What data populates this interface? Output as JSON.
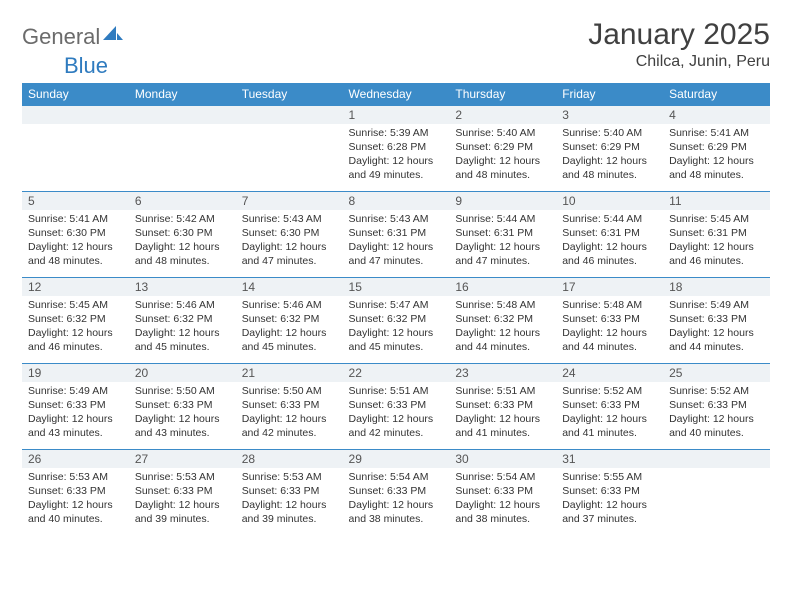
{
  "logo": {
    "text_general": "General",
    "text_blue": "Blue",
    "accent_color": "#2f7bbf",
    "gray_color": "#6b6b6b"
  },
  "title": "January 2025",
  "location": "Chilca, Junin, Peru",
  "header_bg": "#3b8bc8",
  "header_text_color": "#ffffff",
  "daynum_bg": "#eef2f5",
  "border_color": "#3b8bc8",
  "weekdays": [
    "Sunday",
    "Monday",
    "Tuesday",
    "Wednesday",
    "Thursday",
    "Friday",
    "Saturday"
  ],
  "weeks": [
    {
      "nums": [
        "",
        "",
        "",
        "1",
        "2",
        "3",
        "4"
      ],
      "cells": [
        null,
        null,
        null,
        {
          "sunrise": "Sunrise: 5:39 AM",
          "sunset": "Sunset: 6:28 PM",
          "day1": "Daylight: 12 hours",
          "day2": "and 49 minutes."
        },
        {
          "sunrise": "Sunrise: 5:40 AM",
          "sunset": "Sunset: 6:29 PM",
          "day1": "Daylight: 12 hours",
          "day2": "and 48 minutes."
        },
        {
          "sunrise": "Sunrise: 5:40 AM",
          "sunset": "Sunset: 6:29 PM",
          "day1": "Daylight: 12 hours",
          "day2": "and 48 minutes."
        },
        {
          "sunrise": "Sunrise: 5:41 AM",
          "sunset": "Sunset: 6:29 PM",
          "day1": "Daylight: 12 hours",
          "day2": "and 48 minutes."
        }
      ]
    },
    {
      "nums": [
        "5",
        "6",
        "7",
        "8",
        "9",
        "10",
        "11"
      ],
      "cells": [
        {
          "sunrise": "Sunrise: 5:41 AM",
          "sunset": "Sunset: 6:30 PM",
          "day1": "Daylight: 12 hours",
          "day2": "and 48 minutes."
        },
        {
          "sunrise": "Sunrise: 5:42 AM",
          "sunset": "Sunset: 6:30 PM",
          "day1": "Daylight: 12 hours",
          "day2": "and 48 minutes."
        },
        {
          "sunrise": "Sunrise: 5:43 AM",
          "sunset": "Sunset: 6:30 PM",
          "day1": "Daylight: 12 hours",
          "day2": "and 47 minutes."
        },
        {
          "sunrise": "Sunrise: 5:43 AM",
          "sunset": "Sunset: 6:31 PM",
          "day1": "Daylight: 12 hours",
          "day2": "and 47 minutes."
        },
        {
          "sunrise": "Sunrise: 5:44 AM",
          "sunset": "Sunset: 6:31 PM",
          "day1": "Daylight: 12 hours",
          "day2": "and 47 minutes."
        },
        {
          "sunrise": "Sunrise: 5:44 AM",
          "sunset": "Sunset: 6:31 PM",
          "day1": "Daylight: 12 hours",
          "day2": "and 46 minutes."
        },
        {
          "sunrise": "Sunrise: 5:45 AM",
          "sunset": "Sunset: 6:31 PM",
          "day1": "Daylight: 12 hours",
          "day2": "and 46 minutes."
        }
      ]
    },
    {
      "nums": [
        "12",
        "13",
        "14",
        "15",
        "16",
        "17",
        "18"
      ],
      "cells": [
        {
          "sunrise": "Sunrise: 5:45 AM",
          "sunset": "Sunset: 6:32 PM",
          "day1": "Daylight: 12 hours",
          "day2": "and 46 minutes."
        },
        {
          "sunrise": "Sunrise: 5:46 AM",
          "sunset": "Sunset: 6:32 PM",
          "day1": "Daylight: 12 hours",
          "day2": "and 45 minutes."
        },
        {
          "sunrise": "Sunrise: 5:46 AM",
          "sunset": "Sunset: 6:32 PM",
          "day1": "Daylight: 12 hours",
          "day2": "and 45 minutes."
        },
        {
          "sunrise": "Sunrise: 5:47 AM",
          "sunset": "Sunset: 6:32 PM",
          "day1": "Daylight: 12 hours",
          "day2": "and 45 minutes."
        },
        {
          "sunrise": "Sunrise: 5:48 AM",
          "sunset": "Sunset: 6:32 PM",
          "day1": "Daylight: 12 hours",
          "day2": "and 44 minutes."
        },
        {
          "sunrise": "Sunrise: 5:48 AM",
          "sunset": "Sunset: 6:33 PM",
          "day1": "Daylight: 12 hours",
          "day2": "and 44 minutes."
        },
        {
          "sunrise": "Sunrise: 5:49 AM",
          "sunset": "Sunset: 6:33 PM",
          "day1": "Daylight: 12 hours",
          "day2": "and 44 minutes."
        }
      ]
    },
    {
      "nums": [
        "19",
        "20",
        "21",
        "22",
        "23",
        "24",
        "25"
      ],
      "cells": [
        {
          "sunrise": "Sunrise: 5:49 AM",
          "sunset": "Sunset: 6:33 PM",
          "day1": "Daylight: 12 hours",
          "day2": "and 43 minutes."
        },
        {
          "sunrise": "Sunrise: 5:50 AM",
          "sunset": "Sunset: 6:33 PM",
          "day1": "Daylight: 12 hours",
          "day2": "and 43 minutes."
        },
        {
          "sunrise": "Sunrise: 5:50 AM",
          "sunset": "Sunset: 6:33 PM",
          "day1": "Daylight: 12 hours",
          "day2": "and 42 minutes."
        },
        {
          "sunrise": "Sunrise: 5:51 AM",
          "sunset": "Sunset: 6:33 PM",
          "day1": "Daylight: 12 hours",
          "day2": "and 42 minutes."
        },
        {
          "sunrise": "Sunrise: 5:51 AM",
          "sunset": "Sunset: 6:33 PM",
          "day1": "Daylight: 12 hours",
          "day2": "and 41 minutes."
        },
        {
          "sunrise": "Sunrise: 5:52 AM",
          "sunset": "Sunset: 6:33 PM",
          "day1": "Daylight: 12 hours",
          "day2": "and 41 minutes."
        },
        {
          "sunrise": "Sunrise: 5:52 AM",
          "sunset": "Sunset: 6:33 PM",
          "day1": "Daylight: 12 hours",
          "day2": "and 40 minutes."
        }
      ]
    },
    {
      "nums": [
        "26",
        "27",
        "28",
        "29",
        "30",
        "31",
        ""
      ],
      "cells": [
        {
          "sunrise": "Sunrise: 5:53 AM",
          "sunset": "Sunset: 6:33 PM",
          "day1": "Daylight: 12 hours",
          "day2": "and 40 minutes."
        },
        {
          "sunrise": "Sunrise: 5:53 AM",
          "sunset": "Sunset: 6:33 PM",
          "day1": "Daylight: 12 hours",
          "day2": "and 39 minutes."
        },
        {
          "sunrise": "Sunrise: 5:53 AM",
          "sunset": "Sunset: 6:33 PM",
          "day1": "Daylight: 12 hours",
          "day2": "and 39 minutes."
        },
        {
          "sunrise": "Sunrise: 5:54 AM",
          "sunset": "Sunset: 6:33 PM",
          "day1": "Daylight: 12 hours",
          "day2": "and 38 minutes."
        },
        {
          "sunrise": "Sunrise: 5:54 AM",
          "sunset": "Sunset: 6:33 PM",
          "day1": "Daylight: 12 hours",
          "day2": "and 38 minutes."
        },
        {
          "sunrise": "Sunrise: 5:55 AM",
          "sunset": "Sunset: 6:33 PM",
          "day1": "Daylight: 12 hours",
          "day2": "and 37 minutes."
        },
        null
      ]
    }
  ]
}
